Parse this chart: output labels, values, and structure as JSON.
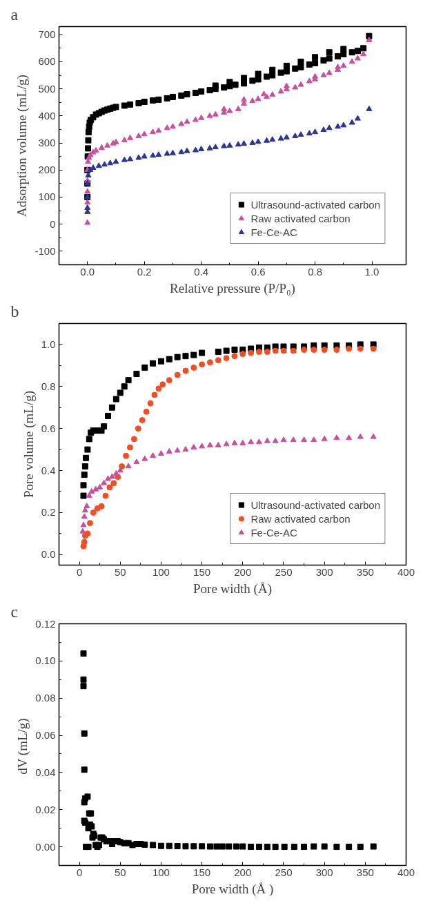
{
  "chart_data": [
    {
      "type": "scatter",
      "title": "a",
      "xlabel": "Relative pressure (P/P₀)",
      "ylabel": "Adsorption volume (mL/g)",
      "xlim": [
        -0.1,
        1.12
      ],
      "ylim": [
        -150,
        730
      ],
      "xticks": [
        {
          "value": 0,
          "label": "0.0"
        },
        0.2,
        0.4,
        0.6,
        0.8,
        {
          "value": 1,
          "label": "1.0"
        }
      ],
      "yticks": [
        {
          "value": -100,
          "label": "-100"
        },
        0,
        100,
        200,
        300,
        400,
        500,
        600,
        700
      ],
      "grid": false,
      "legend": "bottom right",
      "series": [
        {
          "name": "Ultrasound-activated carbon",
          "color": "#000000",
          "marker": "square",
          "x": [
            0.0,
            0.0,
            0.0,
            0.001,
            0.002,
            0.003,
            0.004,
            0.006,
            0.008,
            0.012,
            0.02,
            0.03,
            0.04,
            0.05,
            0.06,
            0.07,
            0.08,
            0.09,
            0.1,
            0.13,
            0.15,
            0.18,
            0.2,
            0.23,
            0.25,
            0.28,
            0.3,
            0.33,
            0.35,
            0.38,
            0.4,
            0.43,
            0.45,
            0.48,
            0.5,
            0.52,
            0.55,
            0.58,
            0.6,
            0.63,
            0.65,
            0.68,
            0.7,
            0.73,
            0.75,
            0.78,
            0.8,
            0.83,
            0.85,
            0.88,
            0.9,
            0.93,
            0.95,
            0.97,
            0.99,
            0.45,
            0.5,
            0.55,
            0.6,
            0.65,
            0.7,
            0.75,
            0.8,
            0.85,
            0.9
          ],
          "values": [
            100,
            150,
            200,
            250,
            280,
            310,
            340,
            360,
            375,
            385,
            395,
            405,
            410,
            415,
            420,
            423,
            427,
            430,
            433,
            438,
            442,
            447,
            452,
            457,
            460,
            465,
            470,
            475,
            480,
            485,
            490,
            495,
            500,
            505,
            510,
            515,
            520,
            530,
            535,
            545,
            550,
            560,
            565,
            575,
            580,
            590,
            595,
            605,
            612,
            620,
            628,
            635,
            640,
            650,
            695,
            512,
            525,
            540,
            555,
            570,
            585,
            600,
            617,
            635,
            647
          ]
        },
        {
          "name": "Raw activated carbon",
          "color": "#c9509d",
          "marker": "triangle",
          "x": [
            0.0,
            0.0,
            0.0,
            0.0,
            0.0,
            0.002,
            0.005,
            0.01,
            0.02,
            0.03,
            0.05,
            0.07,
            0.09,
            0.1,
            0.13,
            0.15,
            0.18,
            0.2,
            0.23,
            0.25,
            0.28,
            0.3,
            0.33,
            0.35,
            0.38,
            0.4,
            0.43,
            0.45,
            0.48,
            0.5,
            0.53,
            0.55,
            0.58,
            0.6,
            0.63,
            0.65,
            0.68,
            0.7,
            0.73,
            0.75,
            0.78,
            0.8,
            0.83,
            0.85,
            0.88,
            0.9,
            0.93,
            0.95,
            0.97,
            0.99,
            0.48,
            0.55,
            0.62,
            0.7,
            0.8,
            0.88
          ],
          "values": [
            5,
            80,
            120,
            160,
            200,
            230,
            245,
            255,
            265,
            272,
            282,
            290,
            298,
            303,
            310,
            318,
            325,
            332,
            340,
            345,
            355,
            360,
            370,
            378,
            385,
            392,
            400,
            405,
            412,
            418,
            425,
            445,
            455,
            462,
            470,
            478,
            490,
            498,
            505,
            515,
            528,
            535,
            550,
            558,
            570,
            585,
            600,
            612,
            628,
            680,
            425,
            460,
            480,
            510,
            545,
            580
          ]
        },
        {
          "name": "Fe-Ce-AC",
          "color": "#2a3596",
          "marker": "triangle",
          "x": [
            0.0,
            0.0,
            0.0,
            0.0,
            0.003,
            0.01,
            0.02,
            0.04,
            0.06,
            0.08,
            0.1,
            0.13,
            0.15,
            0.18,
            0.2,
            0.23,
            0.25,
            0.28,
            0.3,
            0.33,
            0.35,
            0.38,
            0.4,
            0.43,
            0.45,
            0.48,
            0.5,
            0.53,
            0.55,
            0.58,
            0.6,
            0.63,
            0.65,
            0.68,
            0.7,
            0.73,
            0.75,
            0.78,
            0.8,
            0.83,
            0.85,
            0.88,
            0.9,
            0.93,
            0.95,
            0.99
          ],
          "values": [
            45,
            60,
            100,
            150,
            180,
            200,
            208,
            215,
            220,
            225,
            230,
            237,
            240,
            245,
            250,
            253,
            256,
            260,
            262,
            266,
            270,
            273,
            277,
            280,
            284,
            288,
            290,
            294,
            297,
            300,
            304,
            308,
            312,
            316,
            320,
            325,
            330,
            335,
            340,
            348,
            355,
            360,
            365,
            375,
            390,
            425
          ]
        }
      ]
    },
    {
      "type": "scatter",
      "title": "b",
      "xlabel": "Pore width (Å)",
      "ylabel": "Pore volume (mL/g)",
      "xlim": [
        -25,
        400
      ],
      "ylim": [
        -0.05,
        1.1
      ],
      "xticks": [
        0,
        50,
        100,
        150,
        200,
        250,
        300,
        350,
        400
      ],
      "yticks": [
        {
          "value": 0,
          "label": "0.0"
        },
        0.2,
        0.4,
        0.6,
        0.8,
        {
          "value": 1,
          "label": "1.0"
        }
      ],
      "grid": false,
      "legend": "bottom right",
      "series": [
        {
          "name": "Ultrasound-activated carbon",
          "color": "#000000",
          "marker": "square",
          "x": [
            5,
            5,
            6,
            7,
            8,
            10,
            12,
            14,
            17,
            22,
            27,
            30,
            35,
            40,
            45,
            50,
            55,
            60,
            70,
            80,
            90,
            100,
            110,
            120,
            130,
            140,
            150,
            170,
            180,
            190,
            200,
            210,
            220,
            230,
            240,
            250,
            262,
            275,
            287,
            300,
            315,
            330,
            344,
            360
          ],
          "values": [
            0.28,
            0.33,
            0.38,
            0.42,
            0.46,
            0.5,
            0.55,
            0.58,
            0.59,
            0.59,
            0.59,
            0.61,
            0.66,
            0.7,
            0.74,
            0.77,
            0.8,
            0.83,
            0.86,
            0.89,
            0.91,
            0.92,
            0.93,
            0.94,
            0.945,
            0.95,
            0.96,
            0.965,
            0.97,
            0.975,
            0.975,
            0.98,
            0.985,
            0.985,
            0.99,
            0.99,
            0.99,
            0.99,
            0.995,
            0.995,
            0.995,
            0.995,
            1.0,
            1.0
          ]
        },
        {
          "name": "Raw activated carbon",
          "color": "#f04e23",
          "marker": "circle",
          "x": [
            5,
            6,
            7,
            10,
            13,
            17,
            22,
            27,
            32,
            37,
            42,
            47,
            52,
            57,
            62,
            67,
            72,
            77,
            82,
            87,
            92,
            97,
            102,
            110,
            120,
            130,
            140,
            150,
            160,
            170,
            180,
            190,
            200,
            210,
            220,
            230,
            240,
            250,
            262,
            275,
            287,
            300,
            315,
            330,
            344,
            360
          ],
          "values": [
            0.04,
            0.06,
            0.09,
            0.1,
            0.15,
            0.2,
            0.22,
            0.23,
            0.28,
            0.32,
            0.34,
            0.37,
            0.42,
            0.47,
            0.51,
            0.55,
            0.6,
            0.64,
            0.68,
            0.72,
            0.76,
            0.79,
            0.81,
            0.83,
            0.855,
            0.875,
            0.89,
            0.905,
            0.915,
            0.925,
            0.935,
            0.945,
            0.955,
            0.96,
            0.965,
            0.965,
            0.97,
            0.97,
            0.97,
            0.975,
            0.975,
            0.975,
            0.975,
            0.98,
            0.98,
            0.98
          ]
        },
        {
          "name": "Fe-Ce-AC",
          "color": "#c9509d",
          "marker": "triangle",
          "x": [
            4,
            5,
            6,
            7,
            9,
            12,
            15,
            20,
            25,
            30,
            35,
            40,
            45,
            50,
            60,
            70,
            80,
            90,
            100,
            110,
            120,
            130,
            140,
            150,
            160,
            170,
            180,
            190,
            200,
            210,
            220,
            230,
            240,
            250,
            262,
            275,
            287,
            300,
            315,
            330,
            344,
            360
          ],
          "values": [
            0.11,
            0.14,
            0.18,
            0.21,
            0.23,
            0.28,
            0.3,
            0.31,
            0.32,
            0.34,
            0.36,
            0.37,
            0.385,
            0.4,
            0.42,
            0.44,
            0.455,
            0.47,
            0.48,
            0.49,
            0.495,
            0.5,
            0.51,
            0.515,
            0.52,
            0.52,
            0.525,
            0.53,
            0.53,
            0.535,
            0.535,
            0.54,
            0.54,
            0.545,
            0.545,
            0.545,
            0.545,
            0.55,
            0.555,
            0.555,
            0.56,
            0.56
          ]
        }
      ]
    },
    {
      "type": "scatter",
      "title": "c",
      "xlabel": "Pore width (Å )",
      "ylabel": "dV  (mL/g)",
      "xlim": [
        -25,
        400
      ],
      "ylim": [
        -0.01,
        0.12
      ],
      "xticks": [
        0,
        50,
        100,
        150,
        200,
        250,
        300,
        350,
        400
      ],
      "yticks": [
        {
          "value": 0,
          "label": "0.00"
        },
        0.02,
        0.04,
        0.06,
        0.08,
        {
          "value": 0.1,
          "label": "0.10"
        },
        0.12
      ],
      "grid": false,
      "series": [
        {
          "color": "#000000",
          "marker": "square",
          "x": [
            5,
            5,
            5,
            6,
            6,
            6,
            7,
            6,
            7,
            8,
            10,
            11,
            11,
            12,
            13,
            14,
            15,
            16,
            17,
            18,
            20,
            22,
            24,
            26,
            28,
            30,
            33,
            36,
            40,
            43,
            47,
            50,
            55,
            60,
            65,
            70,
            75,
            80,
            90,
            100,
            110,
            120,
            130,
            140,
            150,
            160,
            168,
            175,
            183,
            192,
            200,
            210,
            220,
            230,
            240,
            251,
            263,
            275,
            287,
            300,
            315,
            330,
            344,
            360
          ],
          "values": [
            0.104,
            0.09,
            0.0865,
            0.061,
            0.0415,
            0.024,
            0.026,
            0.014,
            0.013,
            0.0,
            0.027,
            0.0,
            0.01,
            0.018,
            0.012,
            0.018,
            0.011,
            0.005,
            0.007,
            0.006,
            0.001,
            0.0,
            0.001,
            0.005,
            0.005,
            0.004,
            0.003,
            0.003,
            0.0015,
            0.003,
            0.003,
            0.0025,
            0.002,
            0.002,
            0.001,
            0.0015,
            0.0015,
            0.0012,
            0.001,
            0.0005,
            0.0005,
            0.0004,
            0.0003,
            0.0003,
            0.0003,
            0.0002,
            0.0002,
            0.0002,
            0.0002,
            0.0002,
            0.0002,
            0.0,
            0.0,
            0.0,
            0.0,
            0.0,
            0.0,
            0.0,
            0.0002,
            0.0002,
            0.0,
            0.0,
            0.0,
            0.0002
          ]
        }
      ]
    }
  ]
}
